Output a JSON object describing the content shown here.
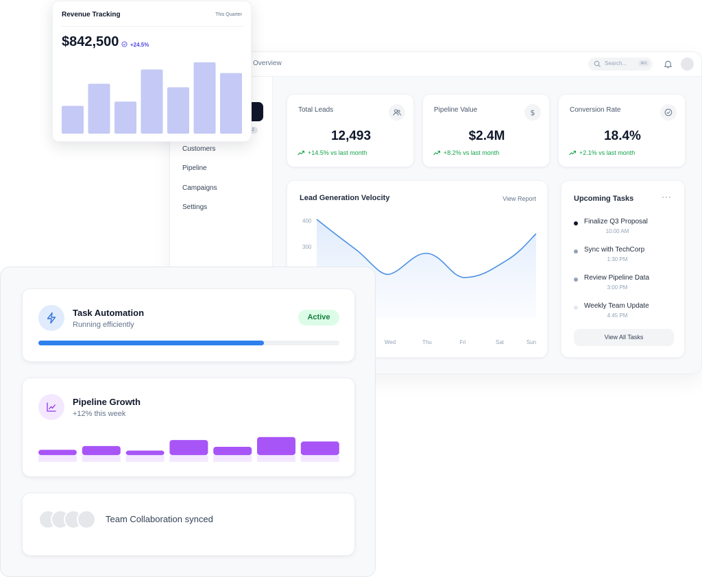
{
  "revenue": {
    "title": "Revenue Tracking",
    "period": "This Quarter",
    "amount": "$842,500",
    "delta": "+24.5%",
    "bars": [
      0.39,
      0.7,
      0.45,
      0.9,
      0.65,
      1.0,
      0.85
    ],
    "bar_color": "#c4c9f5"
  },
  "header": {
    "breadcrumb": "Overview",
    "search_placeholder": "Search...",
    "shortcut": "⌘K"
  },
  "sidebar": {
    "badge": "2",
    "items": [
      {
        "label": "Customers"
      },
      {
        "label": "Pipeline"
      },
      {
        "label": "Campaigns"
      },
      {
        "label": "Settings"
      }
    ]
  },
  "stats": [
    {
      "label": "Total Leads",
      "value": "12,493",
      "change": "+14.5% vs last month",
      "icon": "users-icon"
    },
    {
      "label": "Pipeline Value",
      "value": "$2.4M",
      "change": "+8.2% vs last month",
      "icon": "dollar-icon"
    },
    {
      "label": "Conversion Rate",
      "value": "18.4%",
      "change": "+2.1% vs last month",
      "icon": "check-circle-icon"
    }
  ],
  "velocity_chart": {
    "title": "Lead Generation Velocity",
    "link": "View Report",
    "chart_data": {
      "type": "area",
      "x": [
        "Wed",
        "Thu",
        "Fri",
        "Sat",
        "Sun"
      ],
      "y_ticks": [
        "400",
        "300"
      ],
      "visible_tick_values": [
        400,
        300
      ],
      "line_color": "#4a90e2"
    }
  },
  "tasks": {
    "title": "Upcoming Tasks",
    "more": "···",
    "items": [
      {
        "name": "Finalize Q3 Proposal",
        "time": "10:00 AM",
        "color": "#0f172a"
      },
      {
        "name": "Sync with TechCorp",
        "time": "1:30 PM",
        "color": "#94a3b8"
      },
      {
        "name": "Review Pipeline Data",
        "time": "3:00 PM",
        "color": "#94a3b8"
      },
      {
        "name": "Weekly Team Update",
        "time": "4:45 PM",
        "color": "#e2e8f0"
      }
    ],
    "view_all": "View All Tasks"
  },
  "automation": {
    "title": "Task Automation",
    "subtitle": "Running efficiently",
    "status": "Active",
    "progress": 0.75,
    "accent": "#2f80ed"
  },
  "growth": {
    "title": "Pipeline Growth",
    "subtitle": "+12% this week",
    "bars": [
      {
        "top": 0.35,
        "base": 0.45
      },
      {
        "top": 0.6,
        "base": 0.45
      },
      {
        "top": 0.3,
        "base": 0.45
      },
      {
        "top": 1.0,
        "base": 0.45
      },
      {
        "top": 0.55,
        "base": 0.45
      },
      {
        "top": 1.2,
        "base": 0.45
      },
      {
        "top": 0.9,
        "base": 0.45
      }
    ],
    "accent": "#a855f7"
  },
  "collab": {
    "text": "Team Collaboration synced"
  }
}
